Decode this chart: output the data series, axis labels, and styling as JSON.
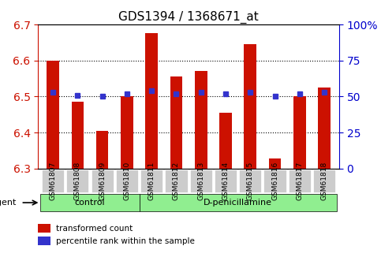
{
  "title": "GDS1394 / 1368671_at",
  "samples": [
    "GSM61807",
    "GSM61808",
    "GSM61809",
    "GSM61810",
    "GSM61811",
    "GSM61812",
    "GSM61813",
    "GSM61814",
    "GSM61815",
    "GSM61816",
    "GSM61817",
    "GSM61818"
  ],
  "red_values": [
    6.6,
    6.485,
    6.405,
    6.5,
    6.675,
    6.555,
    6.57,
    6.455,
    6.645,
    6.328,
    6.5,
    6.525
  ],
  "blue_values": [
    53,
    51,
    50,
    52,
    54,
    52,
    53,
    52,
    53,
    50,
    52,
    53
  ],
  "baseline": 6.3,
  "ylim_left": [
    6.3,
    6.7
  ],
  "ylim_right": [
    0,
    100
  ],
  "yticks_left": [
    6.3,
    6.4,
    6.5,
    6.6,
    6.7
  ],
  "yticks_right": [
    0,
    25,
    50,
    75,
    100
  ],
  "ytick_right_labels": [
    "0",
    "25",
    "50",
    "75",
    "100%"
  ],
  "groups": [
    {
      "label": "control",
      "start": 0,
      "end": 4
    },
    {
      "label": "D-penicillamine",
      "start": 4,
      "end": 12
    }
  ],
  "group_colors": [
    "#90ee90",
    "#90ee90"
  ],
  "bar_color": "#cc1100",
  "blue_color": "#3333cc",
  "bar_width": 0.5,
  "tick_color_left": "#cc1100",
  "tick_color_right": "#0000cc",
  "background_plot": "#ffffff",
  "background_xtick": "#cccccc",
  "grid_color": "#000000",
  "legend_red_label": "transformed count",
  "legend_blue_label": "percentile rank within the sample",
  "agent_label": "agent"
}
